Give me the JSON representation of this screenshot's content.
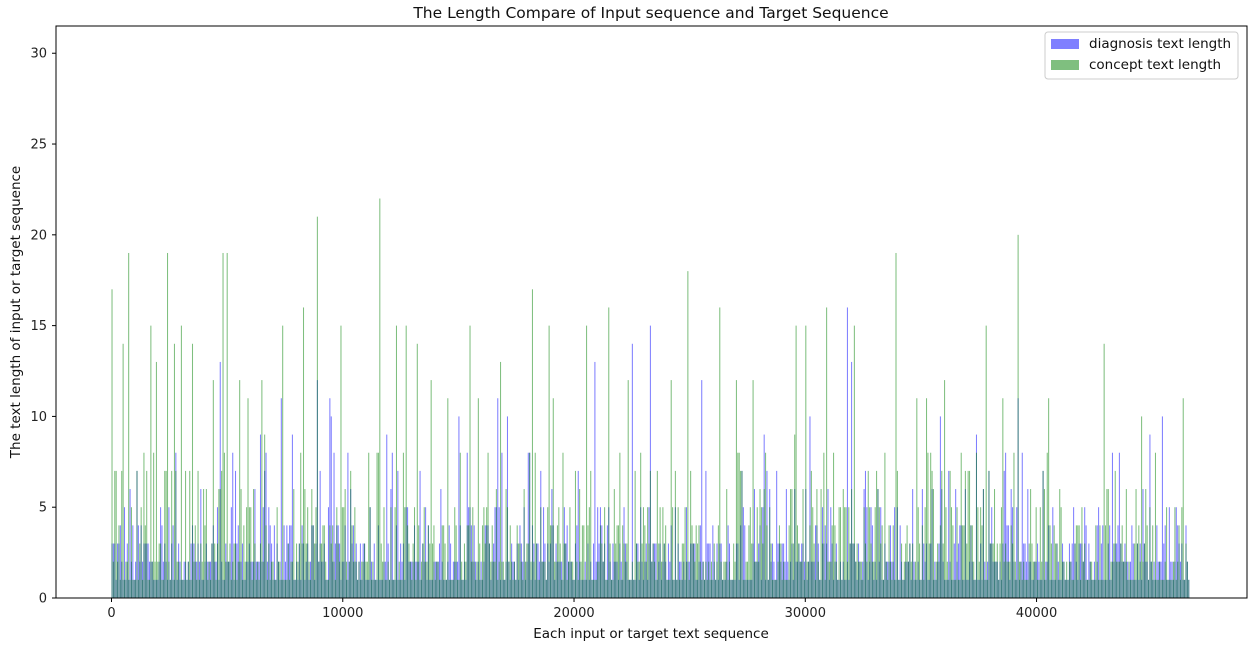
{
  "chart_data": {
    "type": "bar",
    "title": "The Length Compare of Input sequence and Target Sequence",
    "xlabel": "Each input or target text sequence",
    "ylabel": "The text length of input or target sequence",
    "xlim": [
      -2400,
      49100
    ],
    "ylim": [
      0,
      31.5
    ],
    "x_ticks": [
      0,
      10000,
      20000,
      30000,
      40000
    ],
    "y_ticks": [
      0,
      5,
      10,
      15,
      20,
      25,
      30
    ],
    "grid": false,
    "legend": "top-right",
    "bar_alpha": 0.5,
    "n_sequences": 46600,
    "series": [
      {
        "name": "diagnosis text length",
        "color": "#0000ff",
        "peaks": [
          [
            4700,
            13
          ],
          [
            7300,
            11
          ],
          [
            7800,
            9
          ],
          [
            8900,
            12
          ],
          [
            9400,
            11
          ],
          [
            9500,
            10
          ],
          [
            11900,
            9
          ],
          [
            12100,
            8
          ],
          [
            15000,
            10
          ],
          [
            16700,
            11
          ],
          [
            17100,
            10
          ],
          [
            20900,
            13
          ],
          [
            22500,
            14
          ],
          [
            23300,
            15
          ],
          [
            25500,
            12
          ],
          [
            28200,
            9
          ],
          [
            30200,
            10
          ],
          [
            31800,
            16
          ],
          [
            32000,
            13
          ],
          [
            35800,
            10
          ],
          [
            37400,
            9
          ],
          [
            39200,
            11
          ],
          [
            44900,
            9
          ],
          [
            45400,
            10
          ]
        ]
      },
      {
        "name": "concept text length",
        "color": "#008000",
        "peaks": [
          [
            0,
            17
          ],
          [
            200,
            7
          ],
          [
            500,
            14
          ],
          [
            700,
            19
          ],
          [
            1700,
            15
          ],
          [
            1900,
            13
          ],
          [
            2400,
            19
          ],
          [
            2700,
            14
          ],
          [
            3000,
            15
          ],
          [
            3500,
            14
          ],
          [
            4400,
            12
          ],
          [
            4800,
            19
          ],
          [
            5000,
            19
          ],
          [
            5500,
            12
          ],
          [
            5900,
            11
          ],
          [
            6500,
            12
          ],
          [
            7400,
            15
          ],
          [
            8300,
            16
          ],
          [
            8900,
            21
          ],
          [
            9900,
            15
          ],
          [
            11100,
            8
          ],
          [
            11600,
            22
          ],
          [
            12300,
            15
          ],
          [
            12700,
            15
          ],
          [
            13200,
            14
          ],
          [
            13800,
            12
          ],
          [
            14500,
            11
          ],
          [
            15500,
            15
          ],
          [
            16800,
            13
          ],
          [
            18200,
            17
          ],
          [
            18900,
            15
          ],
          [
            20500,
            15
          ],
          [
            21500,
            16
          ],
          [
            22300,
            12
          ],
          [
            24200,
            12
          ],
          [
            24900,
            18
          ],
          [
            26300,
            16
          ],
          [
            27000,
            12
          ],
          [
            27700,
            12
          ],
          [
            29600,
            15
          ],
          [
            30000,
            15
          ],
          [
            30900,
            16
          ],
          [
            32100,
            15
          ],
          [
            33900,
            19
          ],
          [
            35200,
            11
          ],
          [
            36000,
            12
          ],
          [
            37800,
            15
          ],
          [
            38500,
            11
          ],
          [
            39200,
            20
          ],
          [
            40500,
            11
          ],
          [
            42900,
            14
          ],
          [
            44500,
            10
          ],
          [
            46300,
            11
          ]
        ]
      }
    ]
  }
}
